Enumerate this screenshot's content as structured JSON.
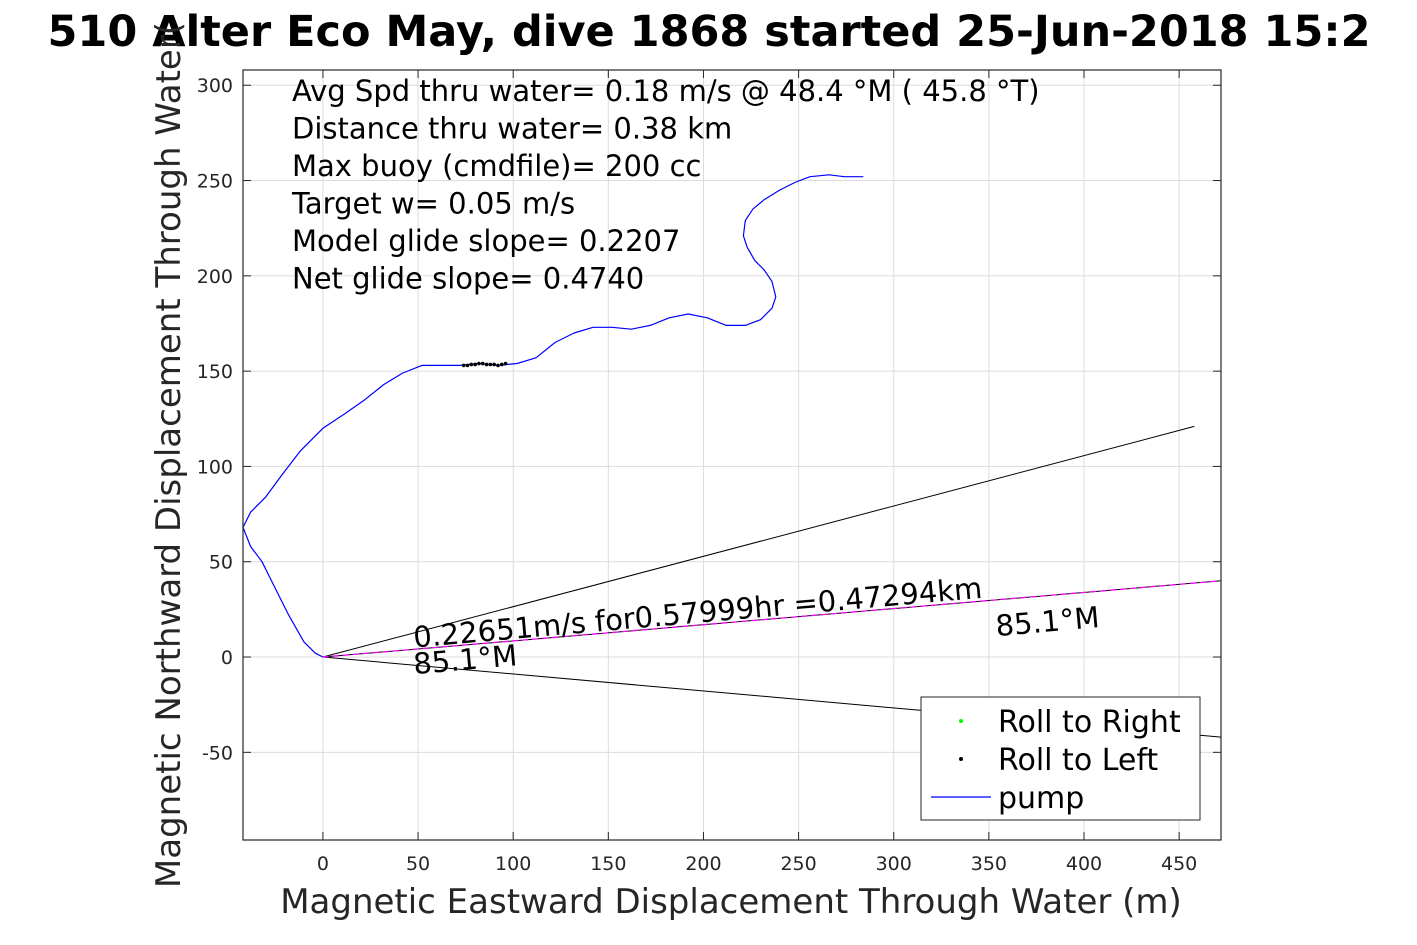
{
  "chart_data": {
    "type": "line",
    "title": "510 Alter Eco May, dive 1868 started 25-Jun-2018 15:2",
    "xlabel": "Magnetic Eastward Displacement Through Water (m)",
    "ylabel": "Magnetic Northward Displacement Through Water(",
    "xlim": [
      -42,
      472
    ],
    "ylim": [
      -96,
      308
    ],
    "xticks": [
      0,
      50,
      100,
      150,
      200,
      250,
      300,
      350,
      400,
      450
    ],
    "yticks": [
      -50,
      0,
      50,
      100,
      150,
      200,
      250,
      300
    ],
    "xtick_labels": [
      "0",
      "50",
      "100",
      "150",
      "200",
      "250",
      "300",
      "350",
      "400",
      "450"
    ],
    "ytick_labels": [
      "-50",
      "0",
      "50",
      "100",
      "150",
      "200",
      "250",
      "300"
    ],
    "grid": true,
    "stats": [
      "Avg Spd thru water=  0.18 m/s @  48.4 °M ( 45.8 °T)",
      "Distance thru water=  0.38 km",
      "Max buoy (cmdfile)= 200 cc",
      "Target w= 0.05 m/s",
      "Model glide slope= 0.2207",
      "Net glide slope= 0.4740"
    ],
    "series": [
      {
        "name": "pump",
        "color": "#0000ff",
        "x": [
          0,
          -4,
          -10,
          -18,
          -26,
          -32,
          -38,
          -42,
          -38,
          -30,
          -22,
          -12,
          0,
          12,
          22,
          32,
          42,
          52,
          62,
          72,
          82,
          92,
          102,
          112,
          122,
          132,
          142,
          152,
          162,
          172,
          182,
          192,
          202,
          212,
          222,
          230,
          236,
          238,
          236,
          232,
          227,
          223,
          221,
          222,
          226,
          232,
          240,
          248,
          256,
          266,
          274,
          284
        ],
        "y": [
          0,
          2,
          8,
          22,
          38,
          50,
          58,
          68,
          76,
          84,
          95,
          108,
          120,
          128,
          135,
          143,
          149,
          153,
          153,
          153,
          154,
          153,
          154,
          157,
          165,
          170,
          173,
          173,
          172,
          174,
          178,
          180,
          178,
          174,
          174,
          177,
          183,
          189,
          197,
          203,
          208,
          215,
          221,
          229,
          235,
          240,
          245,
          249,
          252,
          253,
          252,
          252
        ]
      },
      {
        "name": "Roll to Left",
        "color": "#000000",
        "x": [
          74,
          76,
          78,
          80,
          82,
          84,
          86,
          88,
          90,
          92,
          94,
          96
        ],
        "y": [
          153,
          153,
          153.5,
          153.5,
          154,
          154,
          153.5,
          153.5,
          153.5,
          153,
          153.5,
          154
        ]
      },
      {
        "name": "Roll to Right",
        "color": "#00ff00",
        "x": [],
        "y": []
      }
    ],
    "reference_lines": [
      {
        "x": [
          0,
          458
        ],
        "y": [
          0,
          121
        ],
        "color": "#000000"
      },
      {
        "x": [
          0,
          472
        ],
        "y": [
          0,
          -42
        ],
        "color": "#000000"
      },
      {
        "x": [
          0,
          472
        ],
        "y": [
          0,
          40
        ],
        "color": "#000000"
      },
      {
        "x": [
          0,
          472
        ],
        "y": [
          0,
          40
        ],
        "color": "#ff00ff",
        "dash": true
      }
    ],
    "annotations": [
      {
        "text": "0.22651m/s for0.57999hr =0.47294km",
        "x": 48,
        "y": 5,
        "rotation_deg": -5
      },
      {
        "text": "85.1°M",
        "x": 48,
        "y": -9,
        "rotation_deg": -5
      },
      {
        "text": "85.1°M",
        "x": 354,
        "y": 11,
        "rotation_deg": -5
      }
    ],
    "legend": {
      "placement": "bottom-right",
      "entries": [
        {
          "label": "Roll to Right",
          "color": "#00ff00",
          "marker": "dot"
        },
        {
          "label": "Roll to Left",
          "color": "#000000",
          "marker": "dot"
        },
        {
          "label": "pump",
          "color": "#0000ff",
          "marker": "line"
        }
      ]
    }
  }
}
